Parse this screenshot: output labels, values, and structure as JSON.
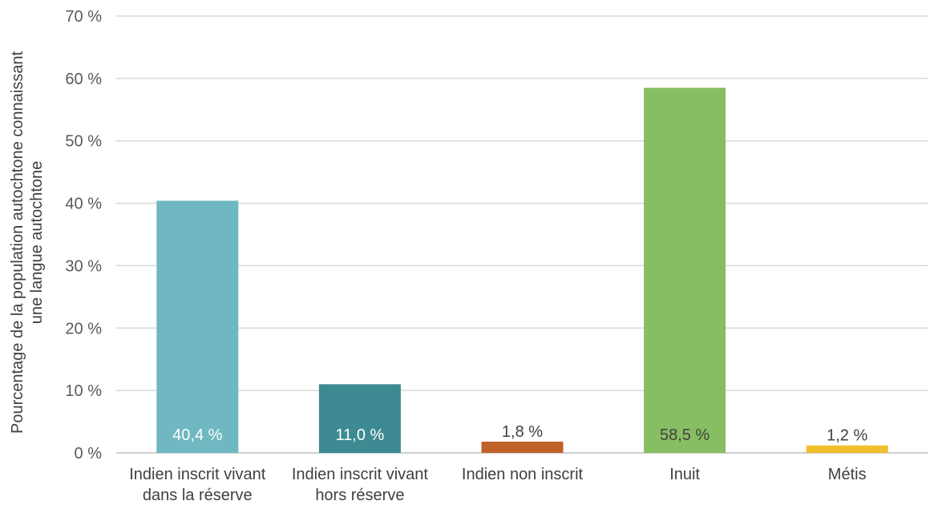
{
  "chart_data": {
    "type": "bar",
    "ylabel_lines": [
      "Pourcentage de la population autochtone connaissant",
      "une langue autochtone"
    ],
    "categories": [
      [
        "Indien inscrit vivant",
        "dans la réserve"
      ],
      [
        "Indien inscrit vivant",
        "hors réserve"
      ],
      [
        "Indien non inscrit"
      ],
      [
        "Inuit"
      ],
      [
        "Métis"
      ]
    ],
    "values": [
      40.4,
      11.0,
      1.8,
      58.5,
      1.2
    ],
    "data_labels": [
      "40,4 %",
      "11,0 %",
      "1,8 %",
      "58,5 %",
      "1,2 %"
    ],
    "colors": [
      "#6fb8c2",
      "#3d8a92",
      "#c0612a",
      "#88be63",
      "#f2bf2c"
    ],
    "label_colors": [
      "#ffffff",
      "#ffffff",
      "#404040",
      "#404040",
      "#404040"
    ],
    "label_inside": [
      true,
      true,
      false,
      true,
      false
    ],
    "ylim": [
      0,
      70
    ],
    "yticks": [
      0,
      10,
      20,
      30,
      40,
      50,
      60,
      70
    ],
    "ytick_labels": [
      "0 %",
      "10 %",
      "20 %",
      "30 %",
      "40 %",
      "50 %",
      "60 %",
      "70 %"
    ],
    "grid": true,
    "legend": false
  }
}
